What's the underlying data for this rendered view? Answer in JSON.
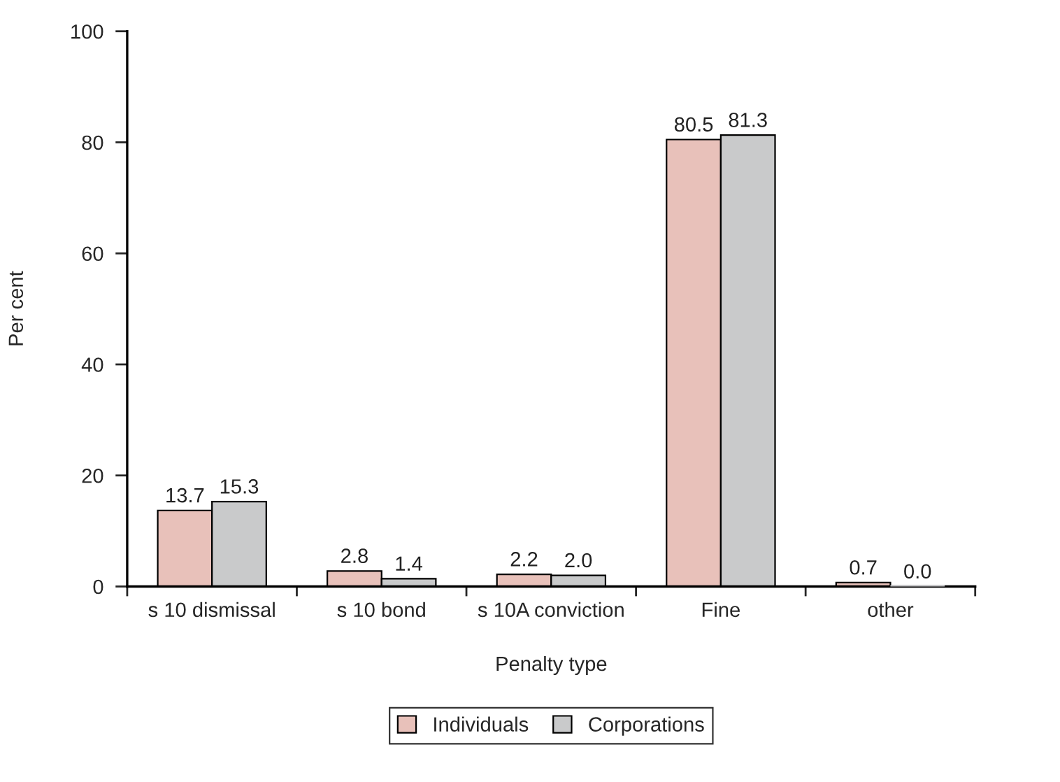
{
  "chart_data": {
    "type": "bar",
    "xlabel": "Penalty type",
    "ylabel": "Per cent",
    "categories": [
      "s 10 dismissal",
      "s 10 bond",
      "s 10A conviction",
      "Fine",
      "other"
    ],
    "series": [
      {
        "name": "Individuals",
        "color": "#e8c1ba",
        "values": [
          13.7,
          2.8,
          2.2,
          80.5,
          0.7
        ],
        "value_labels": [
          "13.7",
          "2.8",
          "2.2",
          "80.5",
          "0.7"
        ]
      },
      {
        "name": "Corporations",
        "color": "#c9cacb",
        "values": [
          15.3,
          1.4,
          2.0,
          81.3,
          0.0
        ],
        "value_labels": [
          "15.3",
          "1.4",
          "2.0",
          "81.3",
          "0.0"
        ]
      }
    ],
    "ylim": [
      0,
      100
    ],
    "yticks": [
      0,
      20,
      40,
      60,
      80,
      100
    ],
    "grid": false,
    "legend": "bottom"
  }
}
